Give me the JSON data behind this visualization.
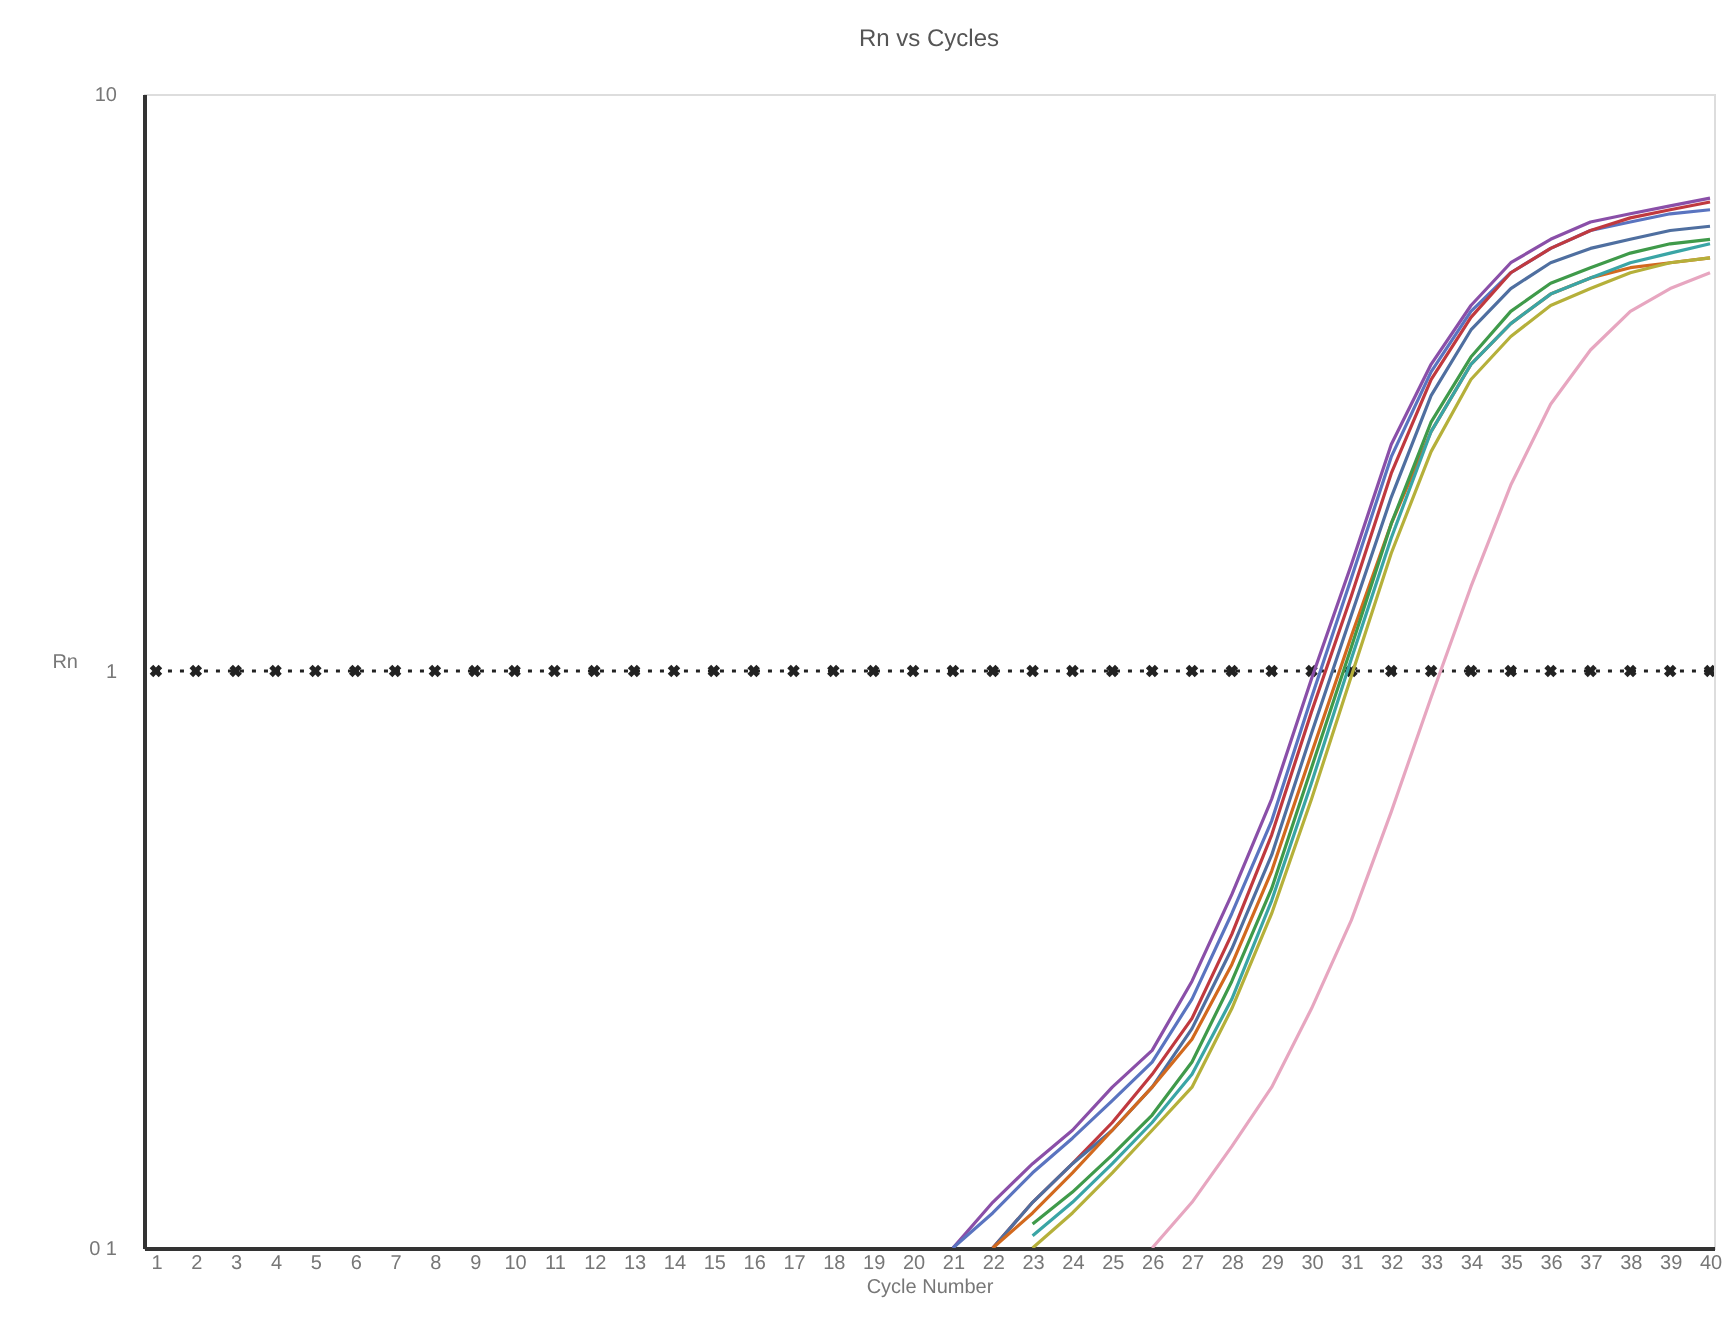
{
  "chart_data": {
    "type": "line",
    "title": "Rn vs Cycles",
    "xlabel": "Cycle Number",
    "ylabel": "Rn",
    "xlim": [
      0.7,
      40.1
    ],
    "xticks": [
      1,
      2,
      3,
      4,
      5,
      6,
      7,
      8,
      9,
      10,
      11,
      12,
      13,
      14,
      15,
      16,
      17,
      18,
      19,
      20,
      21,
      22,
      23,
      24,
      25,
      26,
      27,
      28,
      29,
      30,
      31,
      32,
      33,
      34,
      35,
      36,
      37,
      38,
      39,
      40
    ],
    "ylim": [
      0.1,
      10
    ],
    "yticks": [
      {
        "value": 0.1,
        "label": "0 1"
      },
      1,
      10
    ],
    "log": true,
    "grid": false,
    "marker": "none",
    "line_style": "solid",
    "series": [
      {
        "type": "line",
        "marker": "cross",
        "line_style": "dotted",
        "color": "#222222",
        "x": [
          1,
          2,
          3,
          4,
          5,
          6,
          7,
          8,
          9,
          10,
          11,
          12,
          13,
          14,
          15,
          16,
          17,
          18,
          19,
          20,
          21,
          22,
          23,
          24,
          25,
          26,
          27,
          28,
          29,
          30,
          31,
          32,
          33,
          34,
          35,
          36,
          37,
          38,
          39,
          40
        ],
        "values": [
          1,
          1,
          1,
          1,
          1,
          1,
          1,
          1,
          1,
          1,
          1,
          1,
          1,
          1,
          1,
          1,
          1,
          1,
          1,
          1,
          1,
          1,
          1,
          1,
          1,
          1,
          1,
          1,
          1,
          1,
          1,
          1,
          1,
          1,
          1,
          1,
          1,
          1,
          1,
          1
        ]
      },
      {
        "color": "#8a4fa8",
        "x": [
          21,
          22,
          23,
          24,
          25,
          26,
          27,
          28,
          29,
          30,
          31,
          32,
          33,
          34,
          35,
          36,
          37,
          38,
          39,
          40
        ],
        "values": [
          0.1,
          0.12,
          0.14,
          0.16,
          0.19,
          0.22,
          0.29,
          0.41,
          0.6,
          0.97,
          1.53,
          2.47,
          3.4,
          4.3,
          5.1,
          5.6,
          6.0,
          6.2,
          6.4,
          6.6
        ]
      },
      {
        "color": "#5a74c0",
        "x": [
          21,
          22,
          23,
          24,
          25,
          26,
          27,
          28,
          29,
          30,
          31,
          32,
          33,
          34,
          35,
          36,
          37,
          38,
          39,
          40
        ],
        "values": [
          0.1,
          0.115,
          0.135,
          0.155,
          0.18,
          0.21,
          0.27,
          0.38,
          0.55,
          0.9,
          1.45,
          2.35,
          3.3,
          4.2,
          4.9,
          5.4,
          5.8,
          6.0,
          6.2,
          6.3
        ]
      },
      {
        "color": "#c0393f",
        "x": [
          22,
          23,
          24,
          25,
          26,
          27,
          28,
          29,
          30,
          31,
          32,
          33,
          34,
          35,
          36,
          37,
          38,
          39,
          40
        ],
        "values": [
          0.1,
          0.12,
          0.14,
          0.165,
          0.2,
          0.25,
          0.35,
          0.52,
          0.85,
          1.35,
          2.2,
          3.2,
          4.1,
          4.9,
          5.4,
          5.8,
          6.1,
          6.3,
          6.5
        ]
      },
      {
        "color": "#4f6fa0",
        "x": [
          22,
          23,
          24,
          25,
          26,
          27,
          28,
          29,
          30,
          31,
          32,
          33,
          34,
          35,
          36,
          37,
          38,
          39,
          40
        ],
        "values": [
          0.1,
          0.12,
          0.14,
          0.16,
          0.19,
          0.24,
          0.33,
          0.48,
          0.78,
          1.25,
          2.0,
          3.0,
          3.9,
          4.6,
          5.1,
          5.4,
          5.6,
          5.8,
          5.9
        ]
      },
      {
        "color": "#d2691e",
        "x": [
          22,
          23,
          24,
          25,
          26,
          27,
          28,
          29,
          30,
          31,
          32,
          33,
          34,
          35,
          36,
          37,
          38,
          39,
          40
        ],
        "values": [
          0.1,
          0.115,
          0.135,
          0.16,
          0.19,
          0.23,
          0.31,
          0.45,
          0.72,
          1.15,
          1.8,
          2.6,
          3.4,
          4.0,
          4.5,
          4.8,
          5.0,
          5.1,
          5.2
        ]
      },
      {
        "color": "#3f9a4a",
        "x": [
          23,
          24,
          25,
          26,
          27,
          28,
          29,
          30,
          31,
          32,
          33,
          34,
          35,
          36,
          37,
          38,
          39,
          40
        ],
        "values": [
          0.11,
          0.125,
          0.145,
          0.17,
          0.21,
          0.29,
          0.42,
          0.68,
          1.1,
          1.8,
          2.7,
          3.5,
          4.2,
          4.7,
          5.0,
          5.3,
          5.5,
          5.6
        ]
      },
      {
        "color": "#3aa5a5",
        "x": [
          23,
          24,
          25,
          26,
          27,
          28,
          29,
          30,
          31,
          32,
          33,
          34,
          35,
          36,
          37,
          38,
          39,
          40
        ],
        "values": [
          0.105,
          0.12,
          0.14,
          0.165,
          0.2,
          0.27,
          0.4,
          0.64,
          1.05,
          1.7,
          2.6,
          3.4,
          4.0,
          4.5,
          4.8,
          5.1,
          5.3,
          5.5
        ]
      },
      {
        "color": "#b5b03a",
        "x": [
          23,
          24,
          25,
          26,
          27,
          28,
          29,
          30,
          31,
          32,
          33,
          34,
          35,
          36,
          37,
          38,
          39,
          40
        ],
        "values": [
          0.1,
          0.115,
          0.135,
          0.16,
          0.19,
          0.26,
          0.38,
          0.6,
          0.98,
          1.6,
          2.4,
          3.2,
          3.8,
          4.3,
          4.6,
          4.9,
          5.1,
          5.2
        ]
      },
      {
        "color": "#e7a6c0",
        "x": [
          26,
          27,
          28,
          29,
          30,
          31,
          32,
          33,
          34,
          35,
          36,
          37,
          38,
          39,
          40
        ],
        "values": [
          0.1,
          0.12,
          0.15,
          0.19,
          0.26,
          0.37,
          0.57,
          0.9,
          1.4,
          2.1,
          2.9,
          3.6,
          4.2,
          4.6,
          4.9
        ]
      }
    ]
  }
}
